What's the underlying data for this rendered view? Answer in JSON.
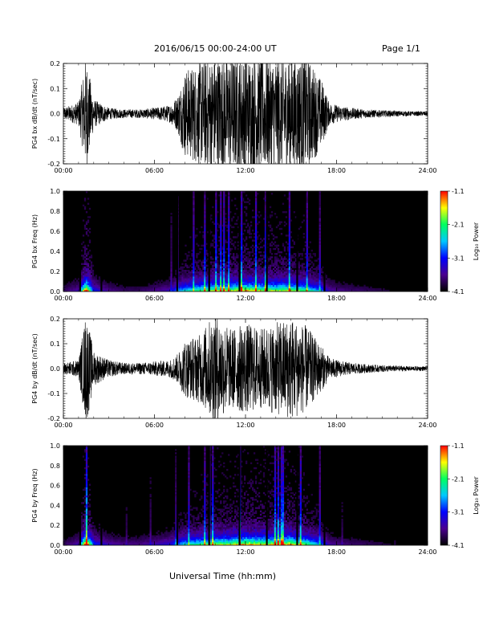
{
  "header": {
    "date_range": "2016/06/15   00:00-24:00 UT",
    "page": "Page 1/1"
  },
  "footer": {
    "xlabel": "Universal Time (hh:mm)"
  },
  "colors": {
    "background": "#ffffff",
    "axes": "#000000",
    "trace": "#000000",
    "colormap": [
      "#000000",
      "#4b0090",
      "#0000ff",
      "#00c8ff",
      "#00ff60",
      "#ffff00",
      "#ff0000"
    ]
  },
  "chart_data": [
    {
      "type": "line",
      "id": "bx-time-series",
      "ylabel": "PG4 bx dB/dt (nT/sec)",
      "xlim": [
        "00:00",
        "24:00"
      ],
      "ylim": [
        -0.2,
        0.2
      ],
      "x_ticks": [
        "00:00",
        "06:00",
        "12:00",
        "18:00",
        "24:00"
      ],
      "y_ticks": [
        "0.2",
        "0.1",
        "0.0",
        "-0.1",
        "-0.2"
      ],
      "series": [
        {
          "x_hours": [
            0,
            1,
            1.5,
            2,
            3,
            4,
            5,
            6,
            7,
            7.5,
            8,
            9,
            10,
            11,
            12,
            13,
            14,
            15,
            16,
            17,
            17.5,
            18,
            19,
            20,
            21,
            22,
            23,
            24
          ],
          "amplitude_envelope": [
            0.02,
            0.04,
            0.2,
            0.05,
            0.02,
            0.015,
            0.015,
            0.02,
            0.03,
            0.06,
            0.15,
            0.18,
            0.2,
            0.2,
            0.2,
            0.2,
            0.2,
            0.2,
            0.2,
            0.12,
            0.04,
            0.03,
            0.02,
            0.015,
            0.012,
            0.01,
            0.008,
            0.008
          ]
        }
      ]
    },
    {
      "type": "heatmap",
      "id": "bx-spectrogram",
      "ylabel": "PG4 bx Freq (Hz)",
      "xlim": [
        "00:00",
        "24:00"
      ],
      "ylim": [
        0.0,
        1.0
      ],
      "x_ticks": [
        "00:00",
        "06:00",
        "12:00",
        "18:00",
        "24:00"
      ],
      "y_ticks": [
        "1.0",
        "0.8",
        "0.6",
        "0.4",
        "0.2",
        "0.0"
      ],
      "colorbar": {
        "label": "Log₁₀ Power",
        "range": [
          -4.1,
          -1.1
        ],
        "ticks": [
          "-1.1",
          "-2.1",
          "-3.1",
          "-4.1"
        ]
      },
      "activity_hours": [
        0,
        1,
        1.5,
        2,
        3,
        4,
        5,
        6,
        7,
        7.5,
        8,
        9,
        10,
        11,
        12,
        13,
        14,
        15,
        16,
        17,
        17.5,
        18,
        19,
        20,
        21,
        22,
        23,
        24
      ],
      "activity_level": [
        0.1,
        0.2,
        1.0,
        0.3,
        0.15,
        0.1,
        0.1,
        0.15,
        0.2,
        0.4,
        0.5,
        0.6,
        0.7,
        0.7,
        0.8,
        0.7,
        0.7,
        0.7,
        0.6,
        0.4,
        0.2,
        0.15,
        0.12,
        0.1,
        0.08,
        0.05,
        0.04,
        0.04
      ]
    },
    {
      "type": "line",
      "id": "by-time-series",
      "ylabel": "PG4 by dB/dt (nT/sec)",
      "xlim": [
        "00:00",
        "24:00"
      ],
      "ylim": [
        -0.2,
        0.2
      ],
      "x_ticks": [
        "00:00",
        "06:00",
        "12:00",
        "18:00",
        "24:00"
      ],
      "y_ticks": [
        "0.2",
        "0.1",
        "0.0",
        "-0.1",
        "-0.2"
      ],
      "series": [
        {
          "x_hours": [
            0,
            1,
            1.5,
            2,
            3,
            4,
            5,
            6,
            7,
            7.5,
            8,
            9,
            10,
            11,
            12,
            13,
            14,
            15,
            16,
            17,
            17.5,
            18,
            19,
            20,
            21,
            22,
            23,
            24
          ],
          "amplitude_envelope": [
            0.02,
            0.03,
            0.2,
            0.06,
            0.03,
            0.02,
            0.02,
            0.025,
            0.03,
            0.05,
            0.1,
            0.12,
            0.2,
            0.14,
            0.16,
            0.14,
            0.16,
            0.18,
            0.15,
            0.08,
            0.04,
            0.03,
            0.02,
            0.015,
            0.012,
            0.01,
            0.008,
            0.008
          ]
        }
      ]
    },
    {
      "type": "heatmap",
      "id": "by-spectrogram",
      "ylabel": "PG4 by Freq (Hz)",
      "xlim": [
        "00:00",
        "24:00"
      ],
      "ylim": [
        0.0,
        1.0
      ],
      "x_ticks": [
        "00:00",
        "06:00",
        "12:00",
        "18:00",
        "24:00"
      ],
      "y_ticks": [
        "1.0",
        "0.8",
        "0.6",
        "0.4",
        "0.2",
        "0.0"
      ],
      "colorbar": {
        "label": "Log₁₀ Power",
        "range": [
          -4.1,
          -1.1
        ],
        "ticks": [
          "-1.1",
          "-2.1",
          "-3.1",
          "-4.1"
        ]
      },
      "activity_hours": [
        0,
        1,
        1.5,
        2,
        3,
        4,
        5,
        6,
        7,
        7.5,
        8,
        9,
        10,
        11,
        12,
        13,
        14,
        15,
        16,
        17,
        17.5,
        18,
        19,
        20,
        21,
        22,
        23,
        24
      ],
      "activity_level": [
        0.1,
        0.2,
        1.0,
        0.35,
        0.2,
        0.15,
        0.15,
        0.2,
        0.25,
        0.4,
        0.5,
        0.6,
        0.7,
        0.7,
        0.8,
        0.75,
        0.75,
        0.8,
        0.65,
        0.4,
        0.2,
        0.15,
        0.12,
        0.1,
        0.08,
        0.05,
        0.04,
        0.04
      ]
    }
  ]
}
